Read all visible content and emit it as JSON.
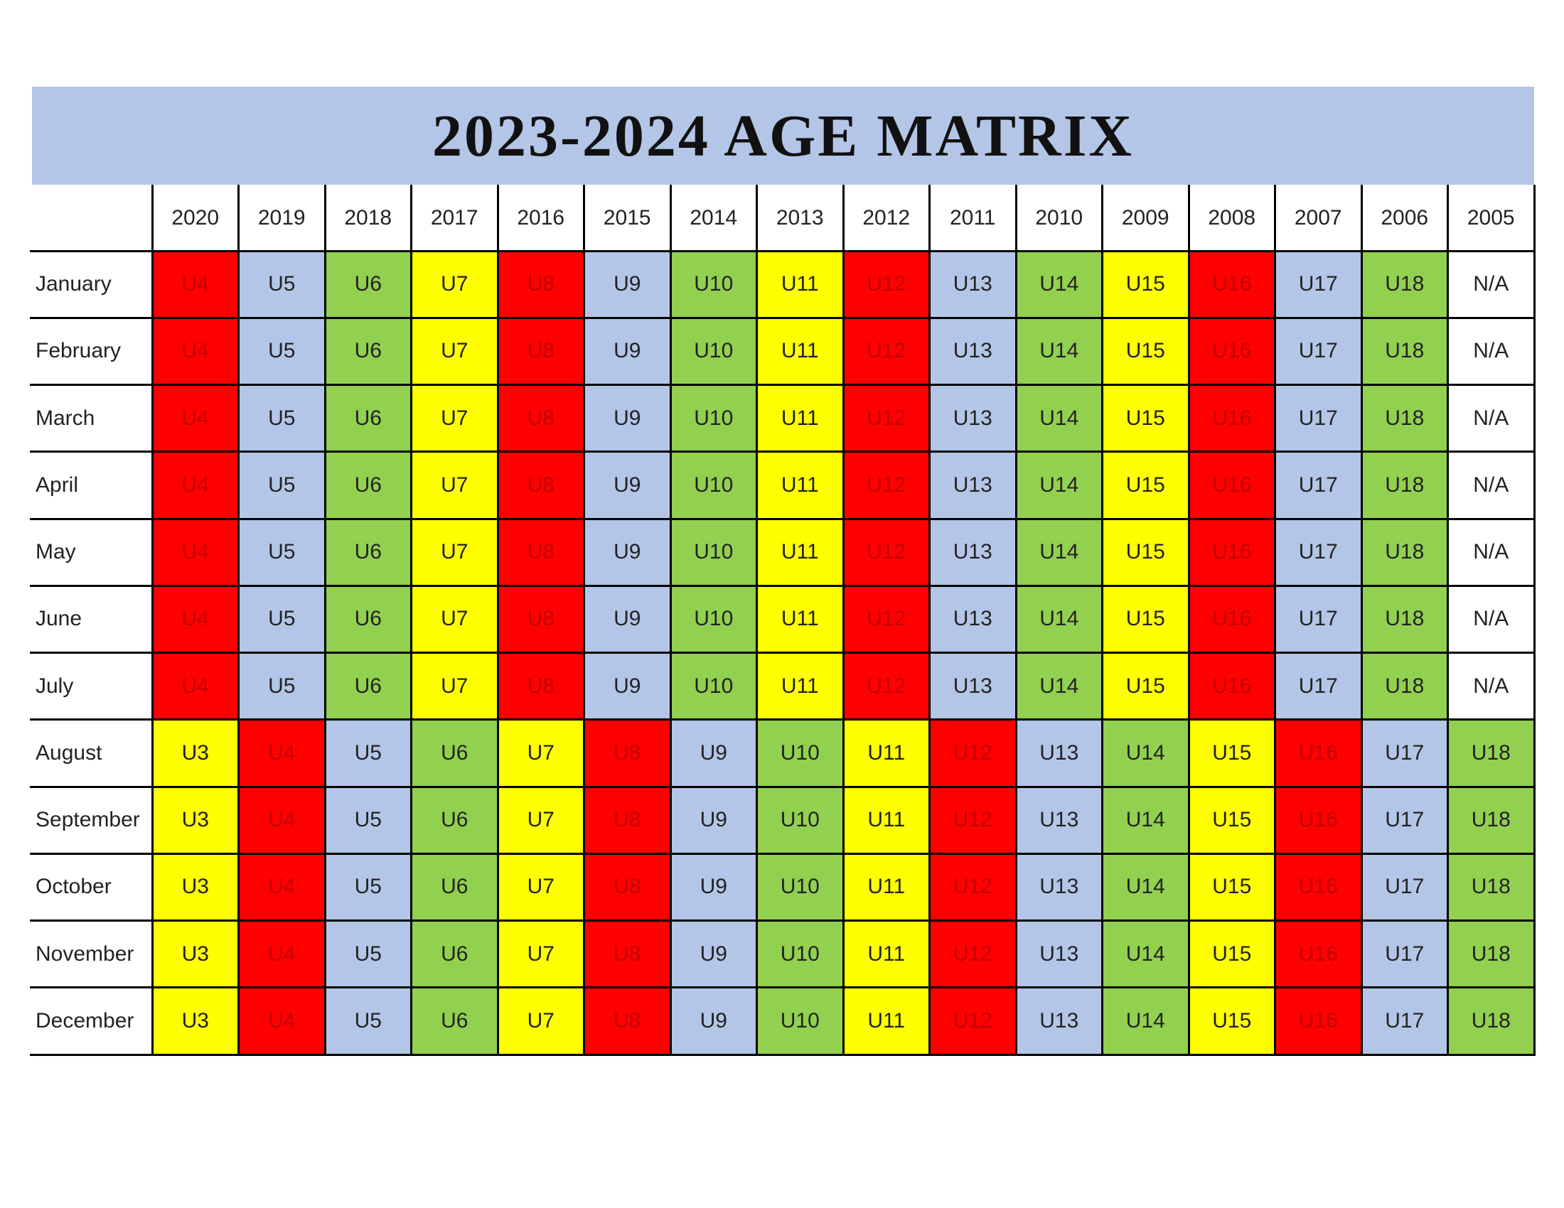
{
  "title": "2023-2024 AGE MATRIX",
  "table": {
    "columns": [
      "2020",
      "2019",
      "2018",
      "2017",
      "2016",
      "2015",
      "2014",
      "2013",
      "2012",
      "2011",
      "2010",
      "2009",
      "2008",
      "2007",
      "2006",
      "2005"
    ],
    "rows": [
      {
        "label": "January",
        "cells": [
          {
            "text": "U4",
            "fill": "#ff0000",
            "color": "#c00000"
          },
          {
            "text": "U5",
            "fill": "#b4c6e7"
          },
          {
            "text": "U6",
            "fill": "#92d050"
          },
          {
            "text": "U7",
            "fill": "#ffff00"
          },
          {
            "text": "U8",
            "fill": "#ff0000",
            "color": "#c00000"
          },
          {
            "text": "U9",
            "fill": "#b4c6e7"
          },
          {
            "text": "U10",
            "fill": "#92d050"
          },
          {
            "text": "U11",
            "fill": "#ffff00"
          },
          {
            "text": "U12",
            "fill": "#ff0000",
            "color": "#c00000"
          },
          {
            "text": "U13",
            "fill": "#b4c6e7"
          },
          {
            "text": "U14",
            "fill": "#92d050"
          },
          {
            "text": "U15",
            "fill": "#ffff00"
          },
          {
            "text": "U16",
            "fill": "#ff0000",
            "color": "#c00000"
          },
          {
            "text": "U17",
            "fill": "#b4c6e7"
          },
          {
            "text": "U18",
            "fill": "#92d050"
          },
          {
            "text": "N/A",
            "fill": "#ffffff"
          }
        ]
      },
      {
        "label": "February",
        "cells": [
          {
            "text": "U4",
            "fill": "#ff0000",
            "color": "#c00000"
          },
          {
            "text": "U5",
            "fill": "#b4c6e7"
          },
          {
            "text": "U6",
            "fill": "#92d050"
          },
          {
            "text": "U7",
            "fill": "#ffff00"
          },
          {
            "text": "U8",
            "fill": "#ff0000",
            "color": "#c00000"
          },
          {
            "text": "U9",
            "fill": "#b4c6e7"
          },
          {
            "text": "U10",
            "fill": "#92d050"
          },
          {
            "text": "U11",
            "fill": "#ffff00"
          },
          {
            "text": "U12",
            "fill": "#ff0000",
            "color": "#c00000"
          },
          {
            "text": "U13",
            "fill": "#b4c6e7"
          },
          {
            "text": "U14",
            "fill": "#92d050"
          },
          {
            "text": "U15",
            "fill": "#ffff00"
          },
          {
            "text": "U16",
            "fill": "#ff0000",
            "color": "#c00000"
          },
          {
            "text": "U17",
            "fill": "#b4c6e7"
          },
          {
            "text": "U18",
            "fill": "#92d050"
          },
          {
            "text": "N/A",
            "fill": "#ffffff"
          }
        ]
      },
      {
        "label": "March",
        "cells": [
          {
            "text": "U4",
            "fill": "#ff0000",
            "color": "#c00000"
          },
          {
            "text": "U5",
            "fill": "#b4c6e7"
          },
          {
            "text": "U6",
            "fill": "#92d050"
          },
          {
            "text": "U7",
            "fill": "#ffff00"
          },
          {
            "text": "U8",
            "fill": "#ff0000",
            "color": "#c00000"
          },
          {
            "text": "U9",
            "fill": "#b4c6e7"
          },
          {
            "text": "U10",
            "fill": "#92d050"
          },
          {
            "text": "U11",
            "fill": "#ffff00"
          },
          {
            "text": "U12",
            "fill": "#ff0000",
            "color": "#c00000"
          },
          {
            "text": "U13",
            "fill": "#b4c6e7"
          },
          {
            "text": "U14",
            "fill": "#92d050"
          },
          {
            "text": "U15",
            "fill": "#ffff00"
          },
          {
            "text": "U16",
            "fill": "#ff0000",
            "color": "#c00000"
          },
          {
            "text": "U17",
            "fill": "#b4c6e7"
          },
          {
            "text": "U18",
            "fill": "#92d050"
          },
          {
            "text": "N/A",
            "fill": "#ffffff"
          }
        ]
      },
      {
        "label": "April",
        "cells": [
          {
            "text": "U4",
            "fill": "#ff0000",
            "color": "#c00000"
          },
          {
            "text": "U5",
            "fill": "#b4c6e7"
          },
          {
            "text": "U6",
            "fill": "#92d050"
          },
          {
            "text": "U7",
            "fill": "#ffff00"
          },
          {
            "text": "U8",
            "fill": "#ff0000",
            "color": "#c00000"
          },
          {
            "text": "U9",
            "fill": "#b4c6e7"
          },
          {
            "text": "U10",
            "fill": "#92d050"
          },
          {
            "text": "U11",
            "fill": "#ffff00"
          },
          {
            "text": "U12",
            "fill": "#ff0000",
            "color": "#c00000"
          },
          {
            "text": "U13",
            "fill": "#b4c6e7"
          },
          {
            "text": "U14",
            "fill": "#92d050"
          },
          {
            "text": "U15",
            "fill": "#ffff00"
          },
          {
            "text": "U16",
            "fill": "#ff0000",
            "color": "#c00000"
          },
          {
            "text": "U17",
            "fill": "#b4c6e7"
          },
          {
            "text": "U18",
            "fill": "#92d050"
          },
          {
            "text": "N/A",
            "fill": "#ffffff"
          }
        ]
      },
      {
        "label": "May",
        "cells": [
          {
            "text": "U4",
            "fill": "#ff0000",
            "color": "#c00000"
          },
          {
            "text": "U5",
            "fill": "#b4c6e7"
          },
          {
            "text": "U6",
            "fill": "#92d050"
          },
          {
            "text": "U7",
            "fill": "#ffff00"
          },
          {
            "text": "U8",
            "fill": "#ff0000",
            "color": "#c00000"
          },
          {
            "text": "U9",
            "fill": "#b4c6e7"
          },
          {
            "text": "U10",
            "fill": "#92d050"
          },
          {
            "text": "U11",
            "fill": "#ffff00"
          },
          {
            "text": "U12",
            "fill": "#ff0000",
            "color": "#c00000"
          },
          {
            "text": "U13",
            "fill": "#b4c6e7"
          },
          {
            "text": "U14",
            "fill": "#92d050"
          },
          {
            "text": "U15",
            "fill": "#ffff00"
          },
          {
            "text": "U16",
            "fill": "#ff0000",
            "color": "#c00000"
          },
          {
            "text": "U17",
            "fill": "#b4c6e7"
          },
          {
            "text": "U18",
            "fill": "#92d050"
          },
          {
            "text": "N/A",
            "fill": "#ffffff"
          }
        ]
      },
      {
        "label": "June",
        "cells": [
          {
            "text": "U4",
            "fill": "#ff0000",
            "color": "#c00000"
          },
          {
            "text": "U5",
            "fill": "#b4c6e7"
          },
          {
            "text": "U6",
            "fill": "#92d050"
          },
          {
            "text": "U7",
            "fill": "#ffff00"
          },
          {
            "text": "U8",
            "fill": "#ff0000",
            "color": "#c00000"
          },
          {
            "text": "U9",
            "fill": "#b4c6e7"
          },
          {
            "text": "U10",
            "fill": "#92d050"
          },
          {
            "text": "U11",
            "fill": "#ffff00"
          },
          {
            "text": "U12",
            "fill": "#ff0000",
            "color": "#c00000"
          },
          {
            "text": "U13",
            "fill": "#b4c6e7"
          },
          {
            "text": "U14",
            "fill": "#92d050"
          },
          {
            "text": "U15",
            "fill": "#ffff00"
          },
          {
            "text": "U16",
            "fill": "#ff0000",
            "color": "#c00000"
          },
          {
            "text": "U17",
            "fill": "#b4c6e7"
          },
          {
            "text": "U18",
            "fill": "#92d050"
          },
          {
            "text": "N/A",
            "fill": "#ffffff"
          }
        ]
      },
      {
        "label": "July",
        "cells": [
          {
            "text": "U4",
            "fill": "#ff0000",
            "color": "#c00000"
          },
          {
            "text": "U5",
            "fill": "#b4c6e7"
          },
          {
            "text": "U6",
            "fill": "#92d050"
          },
          {
            "text": "U7",
            "fill": "#ffff00"
          },
          {
            "text": "U8",
            "fill": "#ff0000",
            "color": "#c00000"
          },
          {
            "text": "U9",
            "fill": "#b4c6e7"
          },
          {
            "text": "U10",
            "fill": "#92d050"
          },
          {
            "text": "U11",
            "fill": "#ffff00"
          },
          {
            "text": "U12",
            "fill": "#ff0000",
            "color": "#c00000"
          },
          {
            "text": "U13",
            "fill": "#b4c6e7"
          },
          {
            "text": "U14",
            "fill": "#92d050"
          },
          {
            "text": "U15",
            "fill": "#ffff00"
          },
          {
            "text": "U16",
            "fill": "#ff0000",
            "color": "#c00000"
          },
          {
            "text": "U17",
            "fill": "#b4c6e7"
          },
          {
            "text": "U18",
            "fill": "#92d050"
          },
          {
            "text": "N/A",
            "fill": "#ffffff"
          }
        ]
      },
      {
        "label": "August",
        "cells": [
          {
            "text": "U3",
            "fill": "#ffff00"
          },
          {
            "text": "U4",
            "fill": "#ff0000",
            "color": "#c00000"
          },
          {
            "text": "U5",
            "fill": "#b4c6e7"
          },
          {
            "text": "U6",
            "fill": "#92d050"
          },
          {
            "text": "U7",
            "fill": "#ffff00"
          },
          {
            "text": "U8",
            "fill": "#ff0000",
            "color": "#c00000"
          },
          {
            "text": "U9",
            "fill": "#b4c6e7"
          },
          {
            "text": "U10",
            "fill": "#92d050"
          },
          {
            "text": "U11",
            "fill": "#ffff00"
          },
          {
            "text": "U12",
            "fill": "#ff0000",
            "color": "#c00000"
          },
          {
            "text": "U13",
            "fill": "#b4c6e7"
          },
          {
            "text": "U14",
            "fill": "#92d050"
          },
          {
            "text": "U15",
            "fill": "#ffff00"
          },
          {
            "text": "U16",
            "fill": "#ff0000",
            "color": "#c00000"
          },
          {
            "text": "U17",
            "fill": "#b4c6e7"
          },
          {
            "text": "U18",
            "fill": "#92d050"
          }
        ]
      },
      {
        "label": "September",
        "cells": [
          {
            "text": "U3",
            "fill": "#ffff00"
          },
          {
            "text": "U4",
            "fill": "#ff0000",
            "color": "#c00000"
          },
          {
            "text": "U5",
            "fill": "#b4c6e7"
          },
          {
            "text": "U6",
            "fill": "#92d050"
          },
          {
            "text": "U7",
            "fill": "#ffff00"
          },
          {
            "text": "U8",
            "fill": "#ff0000",
            "color": "#c00000"
          },
          {
            "text": "U9",
            "fill": "#b4c6e7"
          },
          {
            "text": "U10",
            "fill": "#92d050"
          },
          {
            "text": "U11",
            "fill": "#ffff00"
          },
          {
            "text": "U12",
            "fill": "#ff0000",
            "color": "#c00000"
          },
          {
            "text": "U13",
            "fill": "#b4c6e7"
          },
          {
            "text": "U14",
            "fill": "#92d050"
          },
          {
            "text": "U15",
            "fill": "#ffff00"
          },
          {
            "text": "U16",
            "fill": "#ff0000",
            "color": "#c00000"
          },
          {
            "text": "U17",
            "fill": "#b4c6e7"
          },
          {
            "text": "U18",
            "fill": "#92d050"
          }
        ]
      },
      {
        "label": "October",
        "cells": [
          {
            "text": "U3",
            "fill": "#ffff00"
          },
          {
            "text": "U4",
            "fill": "#ff0000",
            "color": "#c00000"
          },
          {
            "text": "U5",
            "fill": "#b4c6e7"
          },
          {
            "text": "U6",
            "fill": "#92d050"
          },
          {
            "text": "U7",
            "fill": "#ffff00"
          },
          {
            "text": "U8",
            "fill": "#ff0000",
            "color": "#c00000"
          },
          {
            "text": "U9",
            "fill": "#b4c6e7"
          },
          {
            "text": "U10",
            "fill": "#92d050"
          },
          {
            "text": "U11",
            "fill": "#ffff00"
          },
          {
            "text": "U12",
            "fill": "#ff0000",
            "color": "#c00000"
          },
          {
            "text": "U13",
            "fill": "#b4c6e7"
          },
          {
            "text": "U14",
            "fill": "#92d050"
          },
          {
            "text": "U15",
            "fill": "#ffff00"
          },
          {
            "text": "U16",
            "fill": "#ff0000",
            "color": "#c00000"
          },
          {
            "text": "U17",
            "fill": "#b4c6e7"
          },
          {
            "text": "U18",
            "fill": "#92d050"
          }
        ]
      },
      {
        "label": "November",
        "cells": [
          {
            "text": "U3",
            "fill": "#ffff00"
          },
          {
            "text": "U4",
            "fill": "#ff0000",
            "color": "#c00000"
          },
          {
            "text": "U5",
            "fill": "#b4c6e7"
          },
          {
            "text": "U6",
            "fill": "#92d050"
          },
          {
            "text": "U7",
            "fill": "#ffff00"
          },
          {
            "text": "U8",
            "fill": "#ff0000",
            "color": "#c00000"
          },
          {
            "text": "U9",
            "fill": "#b4c6e7"
          },
          {
            "text": "U10",
            "fill": "#92d050"
          },
          {
            "text": "U11",
            "fill": "#ffff00"
          },
          {
            "text": "U12",
            "fill": "#ff0000",
            "color": "#c00000"
          },
          {
            "text": "U13",
            "fill": "#b4c6e7"
          },
          {
            "text": "U14",
            "fill": "#92d050"
          },
          {
            "text": "U15",
            "fill": "#ffff00"
          },
          {
            "text": "U16",
            "fill": "#ff0000",
            "color": "#c00000"
          },
          {
            "text": "U17",
            "fill": "#b4c6e7"
          },
          {
            "text": "U18",
            "fill": "#92d050"
          }
        ]
      },
      {
        "label": "December",
        "cells": [
          {
            "text": "U3",
            "fill": "#ffff00"
          },
          {
            "text": "U4",
            "fill": "#ff0000",
            "color": "#c00000"
          },
          {
            "text": "U5",
            "fill": "#b4c6e7"
          },
          {
            "text": "U6",
            "fill": "#92d050"
          },
          {
            "text": "U7",
            "fill": "#ffff00"
          },
          {
            "text": "U8",
            "fill": "#ff0000",
            "color": "#c00000"
          },
          {
            "text": "U9",
            "fill": "#b4c6e7"
          },
          {
            "text": "U10",
            "fill": "#92d050"
          },
          {
            "text": "U11",
            "fill": "#ffff00"
          },
          {
            "text": "U12",
            "fill": "#ff0000",
            "color": "#c00000"
          },
          {
            "text": "U13",
            "fill": "#b4c6e7"
          },
          {
            "text": "U14",
            "fill": "#92d050"
          },
          {
            "text": "U15",
            "fill": "#ffff00"
          },
          {
            "text": "U16",
            "fill": "#ff0000",
            "color": "#c00000"
          },
          {
            "text": "U17",
            "fill": "#b4c6e7"
          },
          {
            "text": "U18",
            "fill": "#92d050"
          }
        ]
      }
    ]
  }
}
